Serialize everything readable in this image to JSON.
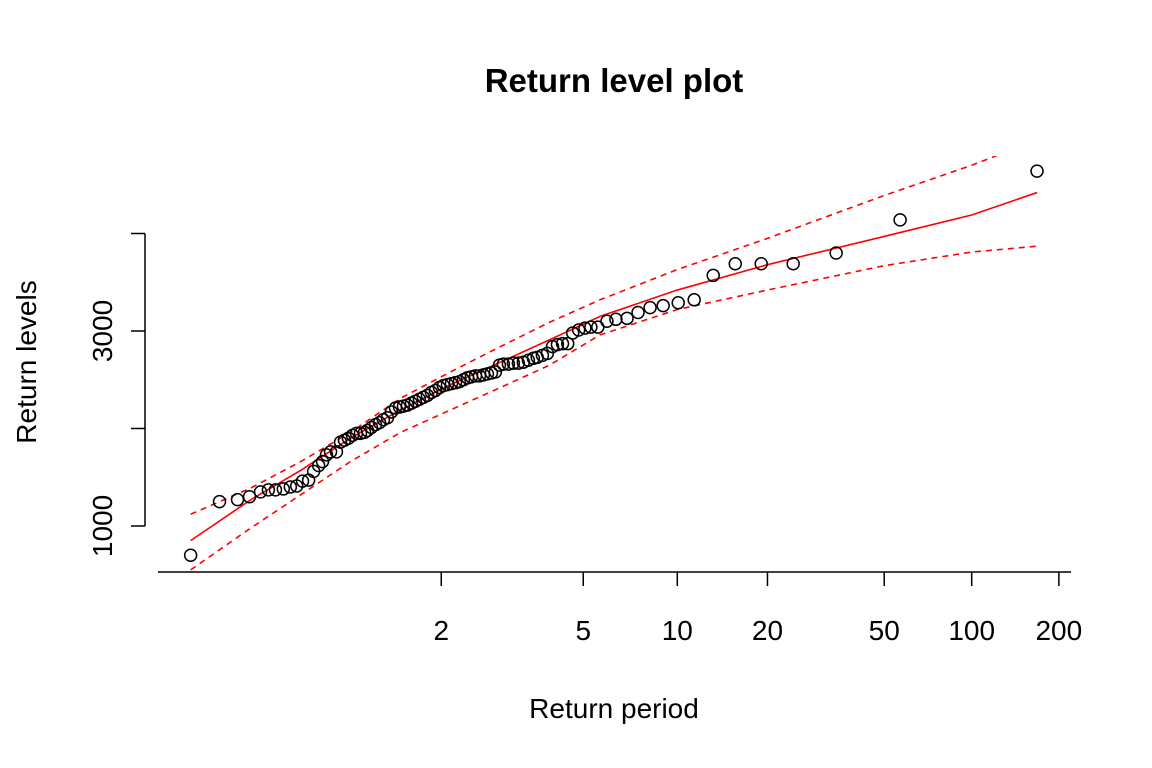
{
  "chart_data": {
    "type": "scatter",
    "title": "Return level plot",
    "xlabel": "Return period",
    "ylabel": "Return levels",
    "xscale": "gumbel-log",
    "xlim": [
      1.0013,
      220.3
    ],
    "xticks": [
      2,
      5,
      10,
      20,
      50,
      100,
      200
    ],
    "ylim": [
      528,
      4795
    ],
    "yticks": [
      1000,
      {
        "value": 2000,
        "label": null
      },
      3000,
      {
        "value": 4000,
        "label": null
      }
    ],
    "points": {
      "color": "#000000",
      "x": [
        1.006,
        1.0174,
        1.0304,
        1.0424,
        1.0563,
        1.068,
        1.08,
        1.095,
        1.11,
        1.125,
        1.14,
        1.157,
        1.172,
        1.188,
        1.201,
        1.215,
        1.23,
        1.253,
        1.27,
        1.287,
        1.305,
        1.324,
        1.344,
        1.364,
        1.386,
        1.402,
        1.425,
        1.449,
        1.474,
        1.499,
        1.526,
        1.554,
        1.583,
        1.613,
        1.644,
        1.676,
        1.71,
        1.744,
        1.78,
        1.817,
        1.856,
        1.896,
        1.937,
        1.98,
        2.024,
        2.07,
        2.118,
        2.167,
        2.217,
        2.27,
        2.325,
        2.38,
        2.439,
        2.499,
        2.561,
        2.625,
        2.692,
        2.76,
        2.832,
        2.904,
        3.0,
        3.098,
        3.201,
        3.308,
        3.421,
        3.537,
        3.63,
        3.76,
        3.89,
        4.03,
        4.17,
        4.32,
        4.48,
        4.64,
        4.84,
        5.06,
        5.28,
        5.55,
        5.93,
        6.33,
        6.87,
        7.45,
        8.15,
        8.99,
        10.07,
        11.37,
        13.15,
        15.58,
        19.05,
        24.44,
        34.23,
        56.7,
        168.1
      ],
      "values": [
        700,
        1250,
        1270,
        1300,
        1350,
        1370,
        1370,
        1380,
        1400,
        1410,
        1460,
        1470,
        1560,
        1620,
        1660,
        1730,
        1760,
        1760,
        1860,
        1880,
        1900,
        1930,
        1950,
        1950,
        1960,
        1980,
        2010,
        2040,
        2060,
        2090,
        2110,
        2170,
        2210,
        2220,
        2230,
        2240,
        2260,
        2280,
        2300,
        2320,
        2340,
        2370,
        2390,
        2420,
        2440,
        2450,
        2460,
        2470,
        2480,
        2500,
        2520,
        2530,
        2540,
        2540,
        2550,
        2560,
        2570,
        2580,
        2650,
        2660,
        2660,
        2670,
        2670,
        2680,
        2700,
        2720,
        2730,
        2750,
        2770,
        2840,
        2860,
        2870,
        2870,
        2980,
        3010,
        3030,
        3040,
        3040,
        3100,
        3120,
        3130,
        3190,
        3240,
        3260,
        3290,
        3320,
        3570,
        3690,
        3690,
        3690,
        3800,
        4140,
        4640
      ]
    },
    "series": [
      {
        "color": "#ff0000",
        "dashed": false,
        "x": [
          1.006,
          1.044,
          1.135,
          1.314,
          1.621,
          2.106,
          2.849,
          3.95,
          5.64,
          10,
          20,
          50,
          100,
          168.1
        ],
        "values": [
          850,
          1270,
          1570,
          1900,
          2190,
          2450,
          2680,
          2910,
          3150,
          3420,
          3680,
          3970,
          4190,
          4420
        ]
      },
      {
        "color": "#ff0000",
        "dashed": true,
        "x": [
          1.006,
          1.044,
          1.135,
          1.314,
          1.621,
          2.106,
          2.849,
          3.95,
          5.64,
          10,
          20,
          50,
          100,
          168.1
        ],
        "values": [
          1120,
          1390,
          1660,
          1960,
          2310,
          2580,
          2840,
          3090,
          3320,
          3630,
          3950,
          4390,
          4700,
          4960
        ]
      },
      {
        "color": "#ff0000",
        "dashed": true,
        "x": [
          1.006,
          1.044,
          1.135,
          1.314,
          1.621,
          2.106,
          2.849,
          3.95,
          5.64,
          10,
          20,
          50,
          100,
          168.1
        ],
        "values": [
          550,
          980,
          1320,
          1660,
          1960,
          2190,
          2420,
          2650,
          2960,
          3220,
          3420,
          3670,
          3810,
          3870
        ]
      }
    ]
  }
}
